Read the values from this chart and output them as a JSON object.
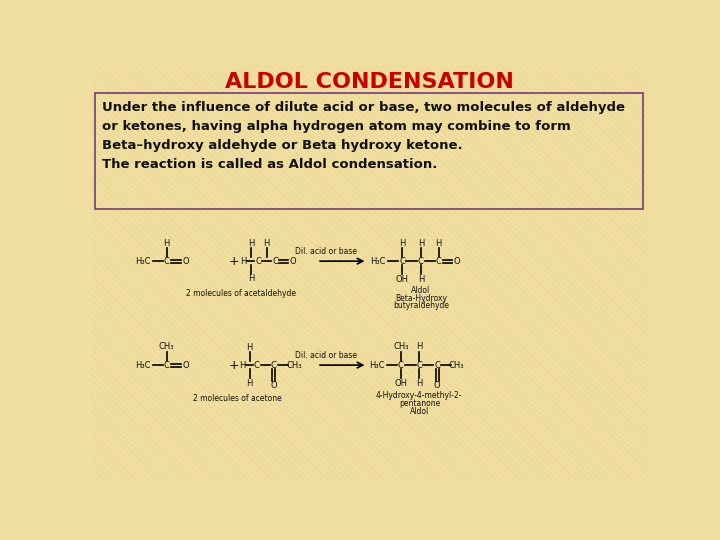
{
  "title": "ALDOL CONDENSATION",
  "title_color": "#cc0000",
  "title_fontsize": 16,
  "bg_color": "#f0dfa0",
  "text_box_color": "#7a3b7a",
  "description_lines": [
    "Under the influence of dilute acid or base, two molecules of aldehyde",
    "or ketones, having alpha hydrogen atom may combine to form",
    "Beta–hydroxy aldehyde or Beta hydroxy ketone.",
    "The reaction is called as Aldol condensation."
  ],
  "desc_fontsize": 9.5,
  "label_fontsize": 6.5,
  "small_fontsize": 5.5,
  "chem_fontsize": 6.0
}
